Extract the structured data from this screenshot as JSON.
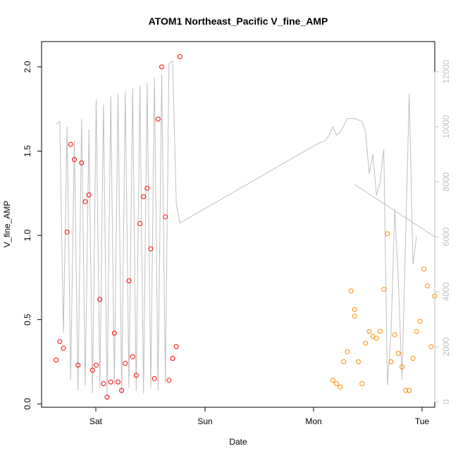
{
  "chart_data": {
    "type": "scatter",
    "title": "ATOM1 Northeast_Pacific V_fine_AMP",
    "xlabel": "Date",
    "ylabel": "V_fine_AMP",
    "x_ticks": [
      "Sat",
      "Sun",
      "Mon",
      "Tue"
    ],
    "xlim": [
      -0.43,
      0.11
    ],
    "ylim": [
      -0.02,
      2.15
    ],
    "y_ticks": [
      "0.0",
      "0.5",
      "1.0",
      "1.5",
      "2.0"
    ],
    "y_tick_values": [
      0.0,
      0.5,
      1.0,
      1.5,
      2.0
    ],
    "y2_ticks": [
      "0",
      "2000",
      "4000",
      "6000",
      "8000",
      "10000",
      "12000"
    ],
    "y2_tick_values": [
      0,
      2000,
      4000,
      6000,
      8000,
      10000,
      12000
    ],
    "y2lim": [
      -200,
      13100
    ],
    "colors": {
      "series1": "#ff0000",
      "series2": "#ff8c00",
      "line": "#bfbfbf",
      "axis": "#000000",
      "right_axis": "#bfbfbf"
    },
    "series": [
      {
        "color": "#ff0000",
        "points": [
          [
            -0.41,
            0.26
          ],
          [
            -0.405,
            0.37
          ],
          [
            -0.4,
            0.33
          ],
          [
            -0.395,
            1.02
          ],
          [
            -0.39,
            1.54
          ],
          [
            -0.385,
            1.45
          ],
          [
            -0.38,
            0.23
          ],
          [
            -0.375,
            1.43
          ],
          [
            -0.37,
            1.2
          ],
          [
            -0.365,
            1.24
          ],
          [
            -0.36,
            0.2
          ],
          [
            -0.355,
            0.23
          ],
          [
            -0.35,
            0.62
          ],
          [
            -0.345,
            0.12
          ],
          [
            -0.34,
            0.04
          ],
          [
            -0.335,
            0.13
          ],
          [
            -0.33,
            0.42
          ],
          [
            -0.325,
            0.13
          ],
          [
            -0.32,
            0.08
          ],
          [
            -0.315,
            0.24
          ],
          [
            -0.31,
            0.73
          ],
          [
            -0.305,
            0.28
          ],
          [
            -0.3,
            0.17
          ],
          [
            -0.295,
            1.07
          ],
          [
            -0.29,
            1.23
          ],
          [
            -0.285,
            1.28
          ],
          [
            -0.28,
            0.92
          ],
          [
            -0.275,
            0.15
          ],
          [
            -0.27,
            1.69
          ],
          [
            -0.265,
            2.0
          ],
          [
            -0.26,
            1.11
          ],
          [
            -0.255,
            0.14
          ],
          [
            -0.25,
            0.27
          ],
          [
            -0.245,
            0.34
          ],
          [
            -0.24,
            2.06
          ]
        ]
      },
      {
        "color": "#ff8c00",
        "points": [
          [
            0.0,
            0.52
          ],
          [
            -0.03,
            0.14
          ],
          [
            -0.025,
            0.12
          ],
          [
            -0.02,
            0.1
          ],
          [
            -0.015,
            0.25
          ],
          [
            -0.01,
            0.31
          ],
          [
            -0.005,
            0.67
          ],
          [
            0.0,
            0.56
          ],
          [
            0.005,
            0.25
          ],
          [
            0.01,
            0.12
          ],
          [
            0.015,
            0.36
          ],
          [
            0.02,
            0.43
          ],
          [
            0.025,
            0.4
          ],
          [
            0.03,
            0.39
          ],
          [
            0.035,
            0.43
          ],
          [
            0.04,
            0.68
          ],
          [
            0.045,
            1.01
          ],
          [
            0.05,
            0.25
          ],
          [
            0.055,
            0.41
          ],
          [
            0.06,
            0.3
          ],
          [
            0.065,
            0.22
          ],
          [
            0.07,
            0.08
          ],
          [
            0.075,
            0.08
          ],
          [
            0.08,
            0.27
          ],
          [
            0.085,
            0.43
          ],
          [
            0.09,
            0.49
          ],
          [
            0.095,
            0.8
          ],
          [
            0.1,
            0.7
          ],
          [
            0.105,
            0.34
          ],
          [
            0.11,
            0.64
          ]
        ]
      }
    ]
  }
}
